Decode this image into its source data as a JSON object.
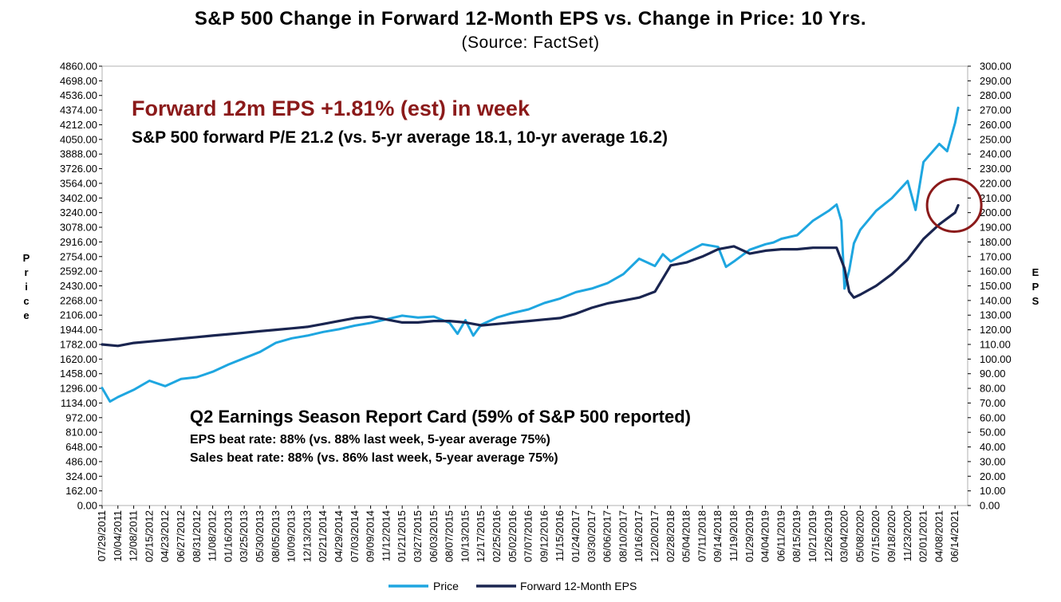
{
  "chart_data": {
    "type": "line",
    "title": "S&P 500 Change in Forward 12-Month EPS vs. Change in Price: 10 Yrs.",
    "subtitle": "(Source: FactSet)",
    "ylabel_left": "Price",
    "ylabel_right": "EPS",
    "y_left_lim": [
      0,
      4860
    ],
    "y_right_lim": [
      0,
      300
    ],
    "y_left_ticks": [
      "0.00",
      "162.00",
      "324.00",
      "486.00",
      "648.00",
      "810.00",
      "972.00",
      "1134.00",
      "1296.00",
      "1458.00",
      "1620.00",
      "1782.00",
      "1944.00",
      "2106.00",
      "2268.00",
      "2430.00",
      "2592.00",
      "2754.00",
      "2916.00",
      "3078.00",
      "3240.00",
      "3402.00",
      "3564.00",
      "3726.00",
      "3888.00",
      "4050.00",
      "4212.00",
      "4374.00",
      "4536.00",
      "4698.00",
      "4860.00"
    ],
    "y_right_ticks": [
      "0.00",
      "10.00",
      "20.00",
      "30.00",
      "40.00",
      "50.00",
      "60.00",
      "70.00",
      "80.00",
      "90.00",
      "100.00",
      "110.00",
      "120.00",
      "130.00",
      "140.00",
      "150.00",
      "160.00",
      "170.00",
      "180.00",
      "190.00",
      "200.00",
      "210.00",
      "220.00",
      "230.00",
      "240.00",
      "250.00",
      "260.00",
      "270.00",
      "280.00",
      "290.00",
      "300.00"
    ],
    "x_tick_labels": [
      "07/29/2011",
      "10/04/2011",
      "12/08/2011",
      "02/15/2012",
      "04/23/2012",
      "06/27/2012",
      "08/31/2012",
      "11/08/2012",
      "01/16/2013",
      "03/25/2013",
      "05/30/2013",
      "08/05/2013",
      "10/09/2013",
      "12/13/2013",
      "02/21/2014",
      "04/29/2014",
      "07/03/2014",
      "09/09/2014",
      "11/12/2014",
      "01/21/2015",
      "03/27/2015",
      "06/03/2015",
      "08/07/2015",
      "10/13/2015",
      "12/17/2015",
      "02/25/2016",
      "05/02/2016",
      "07/07/2016",
      "09/12/2016",
      "11/15/2016",
      "01/24/2017",
      "03/30/2017",
      "06/06/2017",
      "08/10/2017",
      "10/16/2017",
      "12/20/2017",
      "02/28/2018",
      "05/04/2018",
      "07/11/2018",
      "09/14/2018",
      "11/19/2018",
      "01/29/2019",
      "04/04/2019",
      "06/11/2019",
      "08/15/2019",
      "10/21/2019",
      "12/26/2019",
      "03/04/2020",
      "05/08/2020",
      "07/15/2020",
      "09/18/2020",
      "11/23/2020",
      "02/01/2021",
      "04/08/2021",
      "06/14/2021"
    ],
    "series": [
      {
        "name": "Price",
        "axis": "left",
        "color": "#1ea6e0",
        "x": [
          0,
          0.5,
          1,
          2,
          3,
          4,
          5,
          6,
          7,
          8,
          9,
          10,
          11,
          12,
          13,
          14,
          15,
          16,
          17,
          18,
          19,
          20,
          21,
          22,
          22.5,
          23,
          23.5,
          24,
          25,
          26,
          27,
          28,
          29,
          30,
          31,
          32,
          33,
          34,
          35,
          35.5,
          36,
          37,
          38,
          39,
          39.5,
          40,
          41,
          42,
          42.5,
          43,
          44,
          45,
          46,
          46.5,
          46.8,
          47,
          47.3,
          47.6,
          48,
          49,
          50,
          51,
          51.5,
          52,
          53,
          53.5,
          54,
          54.2
        ],
        "y": [
          1300,
          1150,
          1200,
          1280,
          1380,
          1320,
          1400,
          1420,
          1480,
          1560,
          1630,
          1700,
          1800,
          1850,
          1880,
          1920,
          1950,
          1990,
          2020,
          2060,
          2100,
          2080,
          2090,
          2020,
          1900,
          2050,
          1880,
          2000,
          2080,
          2130,
          2170,
          2240,
          2290,
          2360,
          2400,
          2460,
          2560,
          2730,
          2650,
          2780,
          2700,
          2800,
          2890,
          2860,
          2640,
          2700,
          2830,
          2890,
          2910,
          2950,
          2990,
          3150,
          3260,
          3330,
          3150,
          2400,
          2600,
          2900,
          3050,
          3260,
          3400,
          3590,
          3270,
          3800,
          4000,
          3920,
          4230,
          4400
        ]
      },
      {
        "name": "Forward 12-Month EPS",
        "axis": "right",
        "color": "#1a2550",
        "x": [
          0,
          1,
          2,
          3,
          4,
          5,
          6,
          7,
          8,
          9,
          10,
          11,
          12,
          13,
          14,
          15,
          16,
          17,
          18,
          19,
          20,
          21,
          22,
          23,
          24,
          25,
          26,
          27,
          28,
          29,
          30,
          31,
          32,
          33,
          34,
          35,
          36,
          37,
          38,
          39,
          40,
          41,
          42,
          43,
          44,
          45,
          46,
          46.5,
          47,
          47.3,
          47.6,
          48,
          49,
          50,
          51,
          52,
          53,
          54,
          54.2
        ],
        "y": [
          110,
          109,
          111,
          112,
          113,
          114,
          115,
          116,
          117,
          118,
          119,
          120,
          121,
          122,
          124,
          126,
          128,
          129,
          127,
          125,
          125,
          126,
          126,
          125,
          123,
          124,
          125,
          126,
          127,
          128,
          131,
          135,
          138,
          140,
          142,
          146,
          164,
          166,
          170,
          175,
          177,
          172,
          174,
          175,
          175,
          176,
          176,
          176,
          162,
          146,
          142,
          144,
          150,
          158,
          168,
          182,
          192,
          200,
          205
        ]
      }
    ],
    "annotations": {
      "eps_week": "Forward 12m EPS +1.81% (est) in week",
      "forward_pe": "S&P 500 forward P/E 21.2 (vs. 5-yr average 18.1, 10-yr average 16.2)",
      "report_card_title": "Q2 Earnings Season Report Card (59% of S&P 500 reported)",
      "eps_beat": "EPS beat rate: 88% (vs. 88% last week, 5-year average 75%)",
      "sales_beat": "Sales beat rate: 88% (vs. 86% last week, 5-year average 75%)"
    },
    "highlight_circle_color": "#8b1a1a",
    "legend": [
      "Price",
      "Forward 12-Month EPS"
    ],
    "legend_position": "bottom"
  }
}
